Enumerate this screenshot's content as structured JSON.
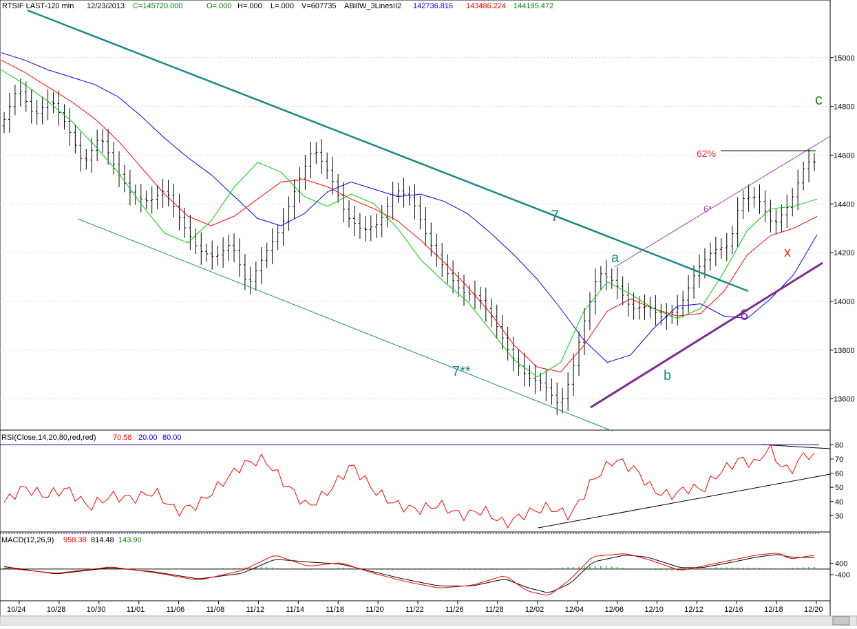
{
  "header": {
    "symbol": "RTSIF LAST-120 min",
    "date": "12/23/2013",
    "close": "C=145720.000",
    "open": "O=.000",
    "high": "H=.000",
    "low": "L=.000",
    "volume": "V=607735",
    "study": "ABillW_3LinesII2",
    "line1": "142736.816",
    "line2": "143486.224",
    "line3": "144195.472"
  },
  "colors": {
    "price": "#000000",
    "ma_green": "#00cc00",
    "ma_red": "#ff0000",
    "ma_blue": "#0000ff",
    "trend_teal": "#1b8a80",
    "purple": "#7b2a8e",
    "label_red": "#e53030",
    "label_green": "#1f8a1f",
    "macd_hist": "#22aa22"
  },
  "panels": {
    "rsi": {
      "title": "RSI(Close,14,20,80,red,red)",
      "value": "70.58",
      "low": "20.00",
      "high": "80.00",
      "ticks": [
        "80",
        "70",
        "60",
        "50",
        "40",
        "30"
      ]
    },
    "macd": {
      "title": "MACD(12,26,9)",
      "macd": "958.38",
      "signal": "814.48",
      "hist": "143.90",
      "ticks": [
        "400",
        "-400"
      ]
    }
  },
  "annotations": {
    "wave7": "7",
    "wave7b": "7**",
    "wave6": "6",
    "wave6star": "6*",
    "a": "a",
    "b": "b",
    "c": "c",
    "x": "x",
    "fib": "62%"
  },
  "chart_data": {
    "type": "candlestick",
    "title": "RTSIF LAST-120 min",
    "ylim": [
      135000,
      151800
    ],
    "y_ticks": [
      "15000",
      "14800",
      "14600",
      "14400",
      "14200",
      "14000",
      "13800",
      "13600"
    ],
    "x_labels": [
      "10/24",
      "10/28",
      "10/30",
      "11/01",
      "11/06",
      "11/08",
      "11/12",
      "11/14",
      "11/18",
      "11/20",
      "11/22",
      "11/26",
      "11/28",
      "12/02",
      "12/04",
      "12/06",
      "12/10",
      "12/12",
      "12/16",
      "12/18",
      "12/20"
    ],
    "price_path": [
      [
        0,
        147200
      ],
      [
        3,
        148800
      ],
      [
        6,
        147600
      ],
      [
        9,
        148300
      ],
      [
        12,
        147200
      ],
      [
        15,
        145600
      ],
      [
        18,
        146800
      ],
      [
        21,
        145400
      ],
      [
        24,
        144300
      ],
      [
        27,
        144100
      ],
      [
        30,
        144600
      ],
      [
        33,
        143200
      ],
      [
        36,
        142100
      ],
      [
        39,
        141800
      ],
      [
        42,
        142400
      ],
      [
        45,
        140600
      ],
      [
        48,
        141900
      ],
      [
        51,
        143000
      ],
      [
        54,
        144800
      ],
      [
        57,
        146300
      ],
      [
        60,
        145200
      ],
      [
        63,
        143500
      ],
      [
        66,
        142900
      ],
      [
        69,
        143200
      ],
      [
        72,
        144600
      ],
      [
        75,
        144200
      ],
      [
        78,
        142500
      ],
      [
        81,
        141300
      ],
      [
        84,
        140400
      ],
      [
        87,
        140200
      ],
      [
        90,
        139200
      ],
      [
        93,
        137800
      ],
      [
        96,
        136900
      ],
      [
        99,
        136600
      ],
      [
        102,
        135700
      ],
      [
        104,
        136900
      ],
      [
        106,
        138800
      ],
      [
        109,
        141200
      ],
      [
        112,
        140800
      ],
      [
        115,
        139700
      ],
      [
        118,
        139800
      ],
      [
        121,
        139300
      ],
      [
        124,
        139800
      ],
      [
        127,
        141300
      ],
      [
        130,
        142100
      ],
      [
        133,
        142300
      ],
      [
        135,
        144200
      ],
      [
        138,
        144300
      ],
      [
        141,
        143100
      ],
      [
        144,
        144000
      ],
      [
        147,
        145720
      ]
    ],
    "series": [
      {
        "name": "142736.816",
        "values": [
          150200,
          149900,
          149500,
          149200,
          148900,
          148400,
          147600,
          146700,
          145900,
          145200,
          144300,
          143400,
          143100,
          143600,
          144500,
          144900,
          144600,
          144300,
          144400,
          144100,
          143600,
          142800,
          141900,
          140900,
          139700,
          138400,
          137500,
          137800,
          138900,
          139800,
          139900,
          139400,
          139300,
          140100,
          141100,
          142736
        ]
      },
      {
        "name": "143486.224",
        "values": [
          149900,
          149400,
          148800,
          148200,
          147500,
          146600,
          145500,
          144400,
          143500,
          143100,
          143500,
          144200,
          144900,
          145000,
          144700,
          144200,
          143800,
          143300,
          142500,
          141600,
          140600,
          139500,
          138200,
          137300,
          137100,
          138200,
          139600,
          140100,
          139700,
          139400,
          139500,
          140400,
          141900,
          142700,
          143000,
          143486
        ]
      },
      {
        "name": "144195.472",
        "values": [
          149500,
          148900,
          148200,
          147400,
          146400,
          145300,
          144000,
          142800,
          142400,
          143300,
          144700,
          145700,
          145300,
          144300,
          143900,
          144400,
          144000,
          143000,
          141700,
          140800,
          140000,
          138800,
          137600,
          136900,
          137500,
          139600,
          140800,
          140300,
          139700,
          139300,
          139700,
          141200,
          142900,
          143800,
          143900,
          144195
        ]
      }
    ],
    "rsi_path": [
      [
        0,
        38
      ],
      [
        4,
        50
      ],
      [
        8,
        44
      ],
      [
        12,
        49
      ],
      [
        16,
        36
      ],
      [
        20,
        44
      ],
      [
        24,
        42
      ],
      [
        28,
        47
      ],
      [
        32,
        33
      ],
      [
        36,
        38
      ],
      [
        40,
        52
      ],
      [
        44,
        66
      ],
      [
        48,
        70
      ],
      [
        52,
        52
      ],
      [
        56,
        36
      ],
      [
        60,
        48
      ],
      [
        64,
        66
      ],
      [
        68,
        48
      ],
      [
        72,
        38
      ],
      [
        76,
        34
      ],
      [
        80,
        38
      ],
      [
        84,
        30
      ],
      [
        88,
        34
      ],
      [
        92,
        24
      ],
      [
        96,
        32
      ],
      [
        100,
        36
      ],
      [
        104,
        30
      ],
      [
        108,
        55
      ],
      [
        112,
        70
      ],
      [
        116,
        62
      ],
      [
        119,
        48
      ],
      [
        122,
        44
      ],
      [
        126,
        50
      ],
      [
        128,
        48
      ],
      [
        131,
        60
      ],
      [
        135,
        70
      ],
      [
        138,
        66
      ],
      [
        140,
        79
      ],
      [
        143,
        62
      ],
      [
        145,
        64
      ],
      [
        147,
        76
      ],
      [
        148,
        70.58
      ]
    ],
    "macd_path": [
      [
        0,
        100
      ],
      [
        10,
        -300
      ],
      [
        20,
        150
      ],
      [
        28,
        -250
      ],
      [
        36,
        -800
      ],
      [
        44,
        -100
      ],
      [
        50,
        1000
      ],
      [
        56,
        200
      ],
      [
        62,
        450
      ],
      [
        68,
        -300
      ],
      [
        74,
        -900
      ],
      [
        80,
        -1350
      ],
      [
        86,
        -1150
      ],
      [
        92,
        -450
      ],
      [
        96,
        -1550
      ],
      [
        100,
        -1900
      ],
      [
        104,
        -700
      ],
      [
        108,
        900
      ],
      [
        114,
        1100
      ],
      [
        118,
        700
      ],
      [
        124,
        -100
      ],
      [
        128,
        200
      ],
      [
        133,
        600
      ],
      [
        138,
        1000
      ],
      [
        142,
        1150
      ],
      [
        144,
        700
      ],
      [
        148,
        958.38
      ]
    ],
    "signal_path": [
      [
        0,
        200
      ],
      [
        10,
        -350
      ],
      [
        20,
        100
      ],
      [
        28,
        -200
      ],
      [
        36,
        -700
      ],
      [
        44,
        -300
      ],
      [
        50,
        700
      ],
      [
        56,
        500
      ],
      [
        62,
        350
      ],
      [
        68,
        -200
      ],
      [
        74,
        -750
      ],
      [
        80,
        -1200
      ],
      [
        86,
        -1200
      ],
      [
        92,
        -700
      ],
      [
        96,
        -1300
      ],
      [
        100,
        -1700
      ],
      [
        104,
        -1000
      ],
      [
        108,
        500
      ],
      [
        114,
        1000
      ],
      [
        118,
        850
      ],
      [
        124,
        100
      ],
      [
        128,
        100
      ],
      [
        133,
        450
      ],
      [
        138,
        850
      ],
      [
        142,
        1050
      ],
      [
        144,
        850
      ],
      [
        148,
        814.48
      ]
    ],
    "hist_path": [
      [
        0,
        -80
      ],
      [
        6,
        0
      ],
      [
        10,
        -40
      ],
      [
        20,
        50
      ],
      [
        30,
        -60
      ],
      [
        40,
        60
      ],
      [
        48,
        150
      ],
      [
        56,
        -80
      ],
      [
        62,
        120
      ],
      [
        70,
        -100
      ],
      [
        80,
        -50
      ],
      [
        90,
        -80
      ],
      [
        96,
        -40
      ],
      [
        104,
        140
      ],
      [
        110,
        230
      ],
      [
        118,
        -60
      ],
      [
        124,
        -120
      ],
      [
        130,
        120
      ],
      [
        138,
        100
      ],
      [
        142,
        60
      ],
      [
        148,
        143.9
      ]
    ],
    "rsi_ylim": [
      20,
      85
    ],
    "macd_ylim": [
      -2200,
      1800
    ]
  }
}
